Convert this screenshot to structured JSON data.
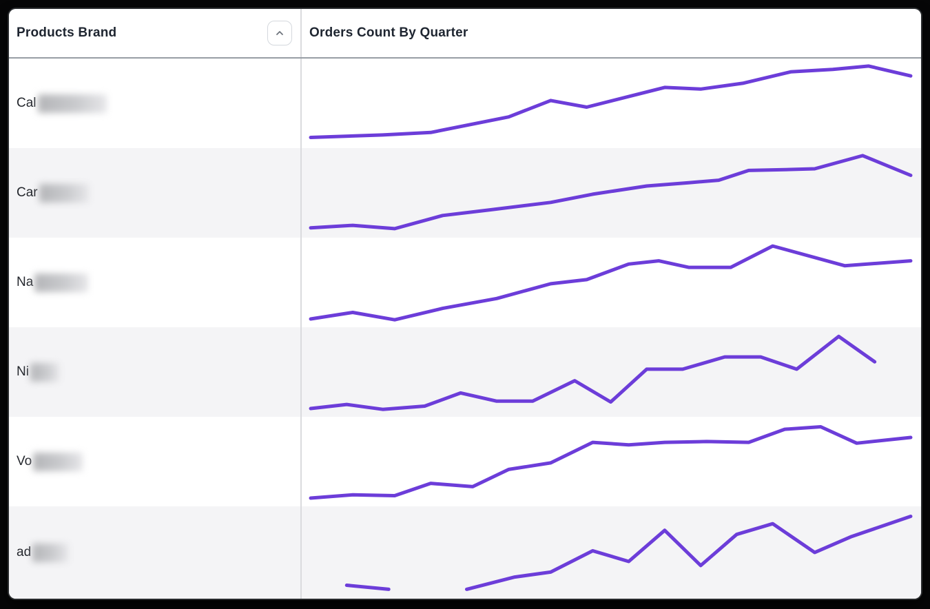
{
  "window": {
    "frame_color": "#060607",
    "panel_color": "#ffffff",
    "stripe_color": "#f4f4f6"
  },
  "header": {
    "products_brand_label": "Products Brand",
    "orders_count_label": "Orders Count By Quarter",
    "sort_icon": "chevron-up-icon"
  },
  "rows": [
    {
      "label_prefix": "Cal",
      "label_redacted": true,
      "blur_width": 100
    },
    {
      "label_prefix": "Car",
      "label_redacted": true,
      "blur_width": 72
    },
    {
      "label_prefix": "Na",
      "label_redacted": true,
      "blur_width": 78
    },
    {
      "label_prefix": "Ni",
      "label_redacted": true,
      "blur_width": 42
    },
    {
      "label_prefix": "Vo",
      "label_redacted": true,
      "blur_width": 72
    },
    {
      "label_prefix": "ad",
      "label_redacted": true,
      "blur_width": 52
    }
  ],
  "chart_data": {
    "type": "line",
    "title": "Orders Count By Quarter",
    "xlabel": "quarters (ticks not shown)",
    "ylabel": "orders count (axis not shown, values normalized 0-100)",
    "ylim": [
      0,
      100
    ],
    "grid": false,
    "legend": false,
    "line_color": "#6C3DD9",
    "series": [
      {
        "name": "Cal",
        "segments": [
          [
            [
              0,
              8
            ],
            [
              12,
              11
            ],
            [
              20,
              14
            ],
            [
              33,
              33
            ],
            [
              40,
              53
            ],
            [
              46,
              45
            ],
            [
              59,
              69
            ],
            [
              65,
              67
            ],
            [
              72,
              74
            ],
            [
              80,
              88
            ],
            [
              87,
              91
            ],
            [
              93,
              95
            ],
            [
              100,
              83
            ]
          ]
        ]
      },
      {
        "name": "Car",
        "segments": [
          [
            [
              0,
              7
            ],
            [
              7,
              10
            ],
            [
              14,
              6
            ],
            [
              22,
              22
            ],
            [
              30,
              29
            ],
            [
              40,
              38
            ],
            [
              47,
              48
            ],
            [
              56,
              58
            ],
            [
              63,
              62
            ],
            [
              68,
              65
            ],
            [
              73,
              77
            ],
            [
              79,
              78
            ],
            [
              84,
              79
            ],
            [
              92,
              95
            ],
            [
              100,
              71
            ]
          ]
        ]
      },
      {
        "name": "Na",
        "segments": [
          [
            [
              0,
              5
            ],
            [
              7,
              13
            ],
            [
              14,
              4
            ],
            [
              22,
              18
            ],
            [
              31,
              30
            ],
            [
              40,
              48
            ],
            [
              46,
              53
            ],
            [
              53,
              72
            ],
            [
              58,
              76
            ],
            [
              63,
              68
            ],
            [
              70,
              68
            ],
            [
              77,
              94
            ],
            [
              89,
              70
            ],
            [
              100,
              76
            ]
          ]
        ]
      },
      {
        "name": "Ni",
        "segments": [
          [
            [
              0,
              5
            ],
            [
              6,
              10
            ],
            [
              12,
              4
            ],
            [
              19,
              8
            ],
            [
              25,
              24
            ],
            [
              31,
              14
            ],
            [
              37,
              14
            ],
            [
              44,
              39
            ],
            [
              50,
              13
            ],
            [
              56,
              53
            ],
            [
              62,
              53
            ],
            [
              69,
              68
            ],
            [
              75,
              68
            ],
            [
              81,
              53
            ],
            [
              88,
              93
            ],
            [
              94,
              62
            ]
          ]
        ]
      },
      {
        "name": "Vo",
        "segments": [
          [
            [
              0,
              5
            ],
            [
              7,
              9
            ],
            [
              14,
              8
            ],
            [
              20,
              23
            ],
            [
              27,
              19
            ],
            [
              33,
              40
            ],
            [
              40,
              48
            ],
            [
              47,
              73
            ],
            [
              53,
              70
            ],
            [
              59,
              73
            ],
            [
              66,
              74
            ],
            [
              73,
              73
            ],
            [
              79,
              89
            ],
            [
              85,
              92
            ],
            [
              91,
              72
            ],
            [
              100,
              79
            ]
          ]
        ]
      },
      {
        "name": "ad",
        "segments": [
          [
            [
              6,
              8
            ],
            [
              13,
              3
            ]
          ],
          [
            [
              26,
              3
            ],
            [
              34,
              18
            ],
            [
              40,
              24
            ],
            [
              47,
              50
            ],
            [
              53,
              37
            ],
            [
              59,
              75
            ],
            [
              65,
              32
            ],
            [
              71,
              70
            ],
            [
              77,
              83
            ],
            [
              84,
              48
            ],
            [
              90,
              67
            ],
            [
              100,
              92
            ]
          ]
        ]
      }
    ]
  }
}
